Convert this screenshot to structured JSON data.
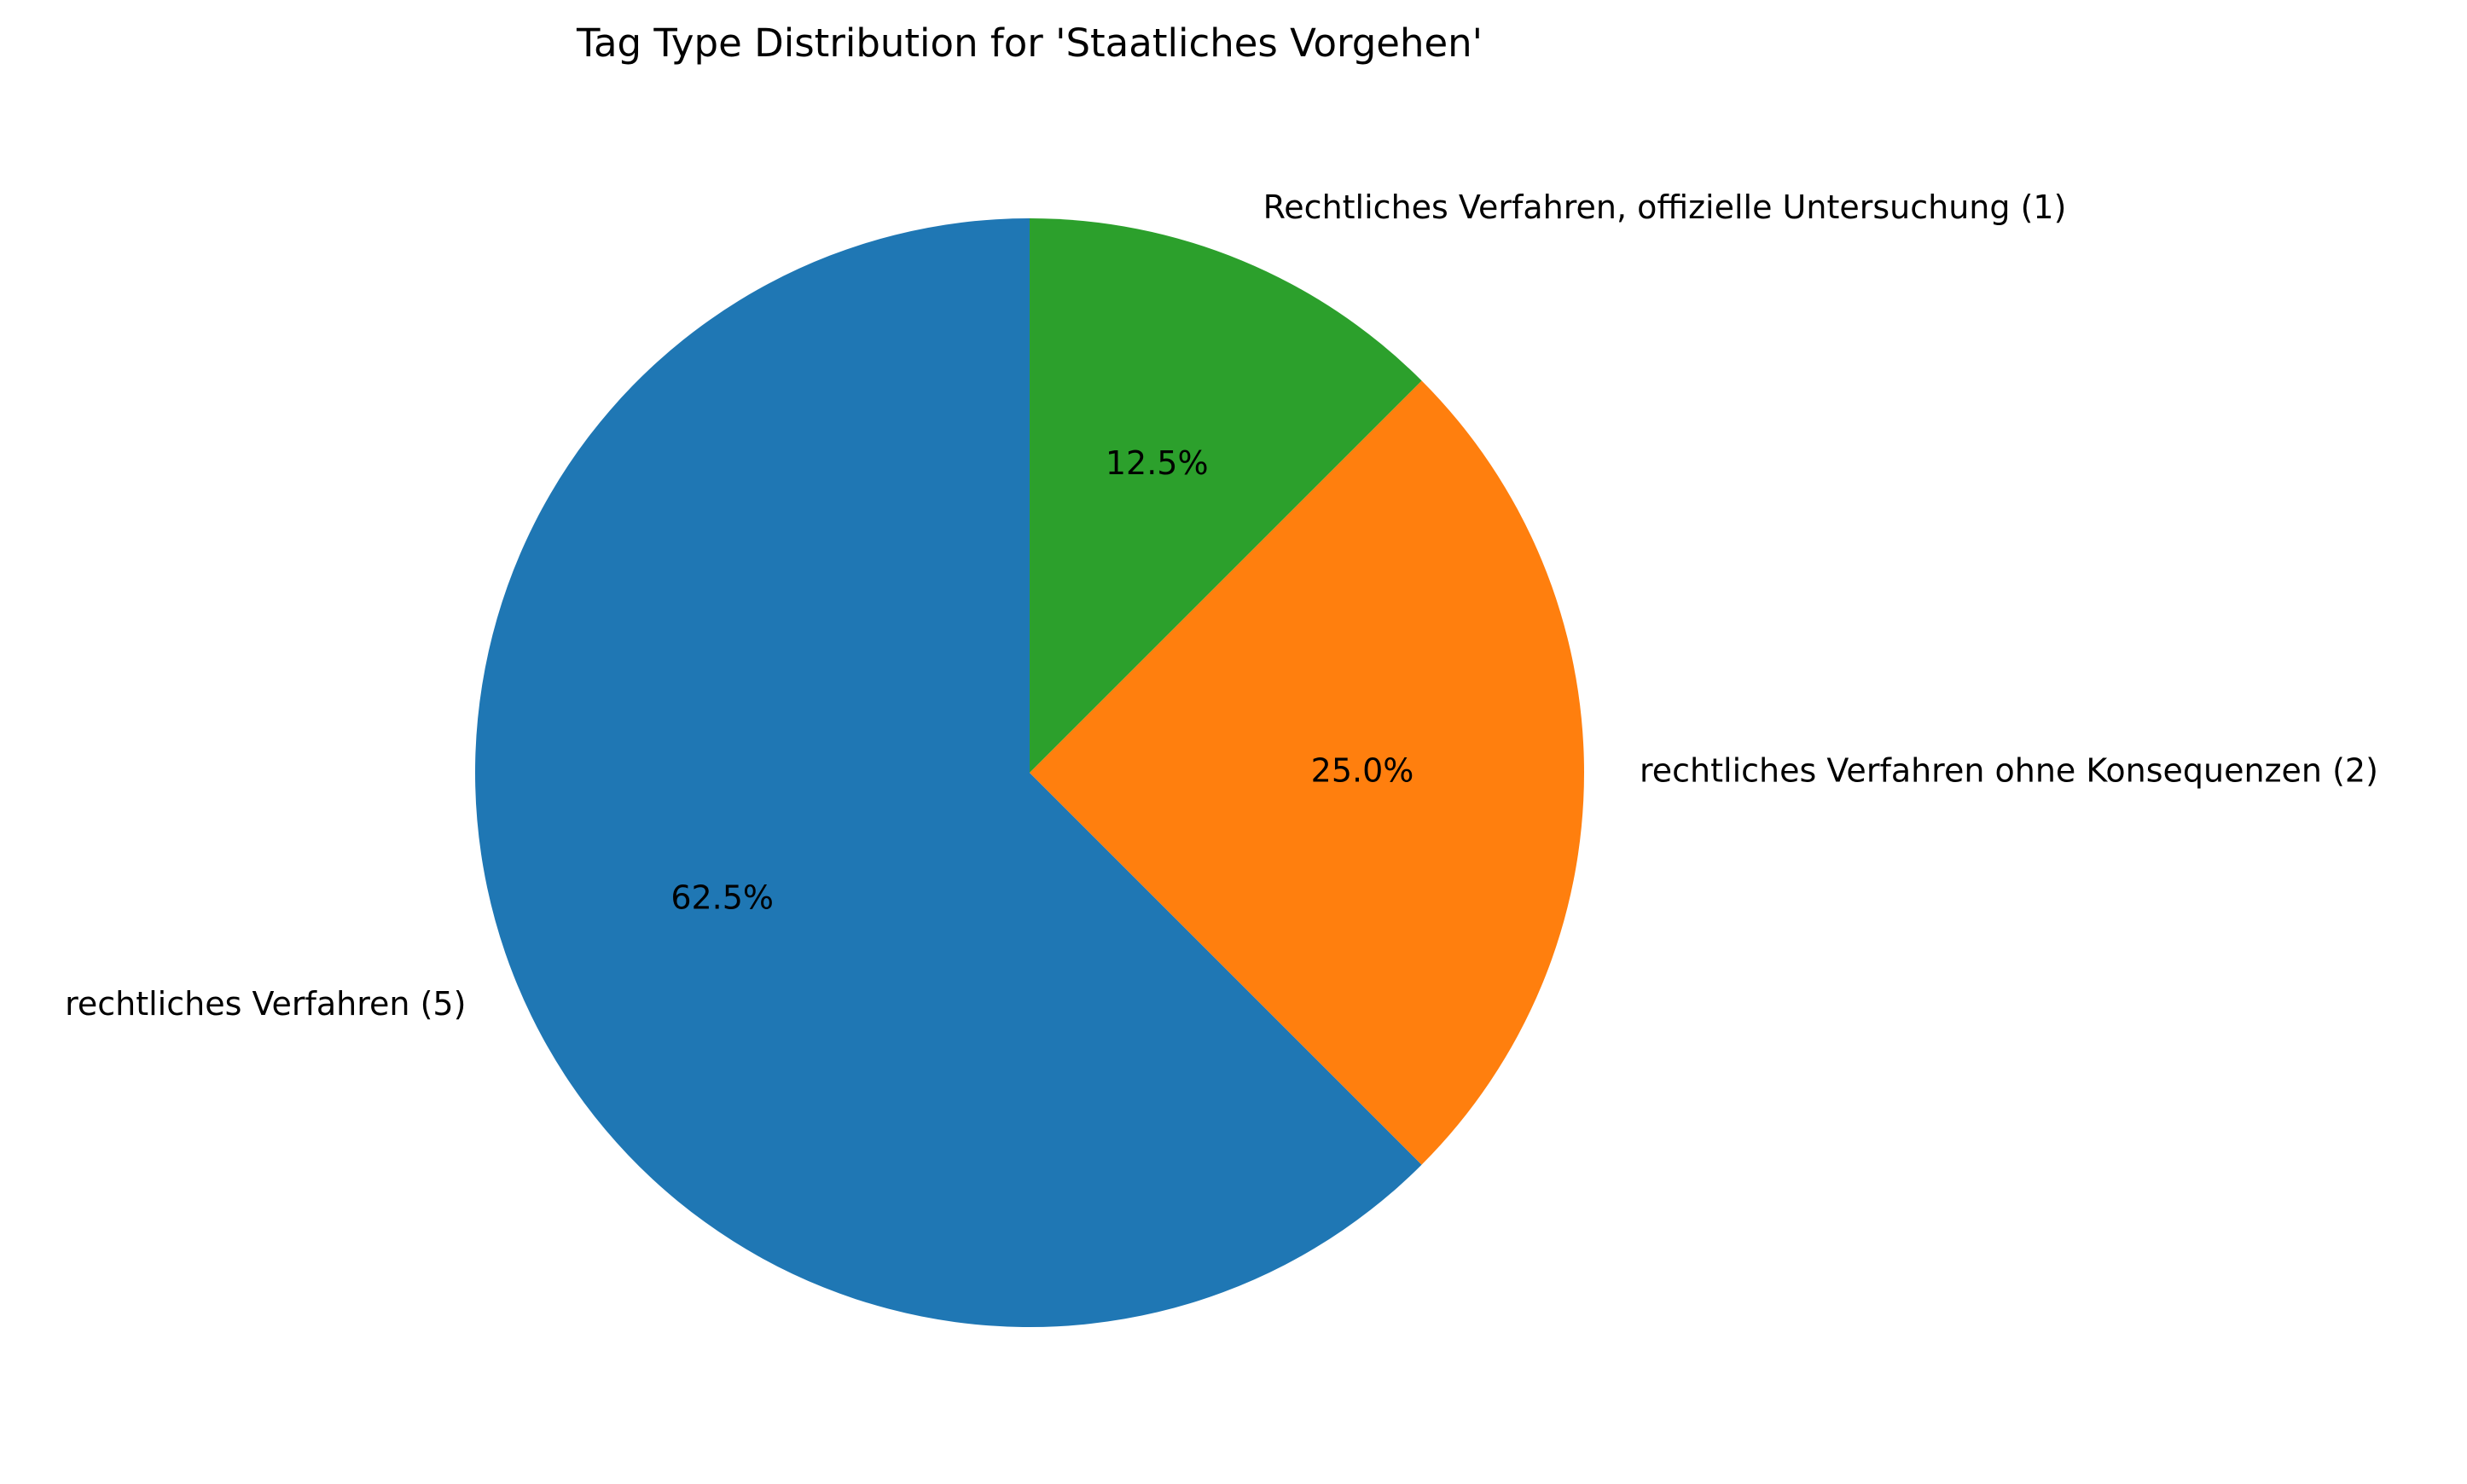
{
  "chart_data": {
    "type": "pie",
    "title": "Tag Type Distribution for 'Staatliches Vorgehen'",
    "start_angle_deg": 90,
    "direction": "counterclockwise",
    "slices": [
      {
        "label": "rechtliches Verfahren (5)",
        "value": 5,
        "percent_label": "62.5%",
        "color": "#1f77b4"
      },
      {
        "label": "rechtliches Verfahren ohne Konsequenzen (2)",
        "value": 2,
        "percent_label": "25.0%",
        "color": "#ff7f0e"
      },
      {
        "label": "Rechtliches Verfahren, offizielle Untersuchung (1)",
        "value": 1,
        "percent_label": "12.5%",
        "color": "#2ca02c"
      }
    ]
  }
}
